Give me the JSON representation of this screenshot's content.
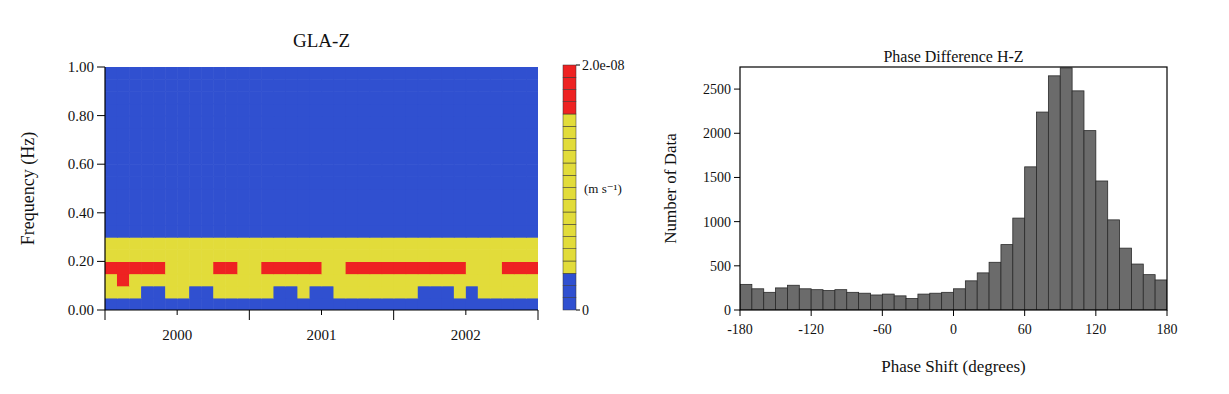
{
  "chart_data": [
    {
      "type": "heatmap",
      "title": "GLA-Z",
      "y_label": "Frequency (Hz)",
      "x_edges": [
        2000,
        2000.083,
        2000.167,
        2000.25,
        2000.333,
        2000.417,
        2000.5,
        2000.583,
        2000.667,
        2000.75,
        2000.833,
        2000.917,
        2001,
        2001.083,
        2001.167,
        2001.25,
        2001.333,
        2001.417,
        2001.5,
        2001.583,
        2001.667,
        2001.75,
        2001.833,
        2001.917,
        2002,
        2002.083,
        2002.167,
        2002.25,
        2002.333,
        2002.417,
        2002.5,
        2002.583,
        2002.667,
        2002.75,
        2002.833,
        2002.917,
        2003
      ],
      "y_edges": [
        0,
        0.05,
        0.1,
        0.15,
        0.2,
        0.25,
        0.3,
        0.35,
        0.4,
        0.45,
        0.5,
        0.55,
        0.6,
        0.65,
        0.7,
        0.75,
        0.8,
        0.85,
        0.9,
        0.95,
        1.0
      ],
      "z": [
        [
          2e-09,
          2e-09,
          2e-09,
          2e-09,
          2e-09,
          2e-09,
          2e-09,
          2e-09,
          2e-09,
          2e-09,
          2e-09,
          2e-09,
          2e-09,
          2e-09,
          2e-09,
          2e-09,
          2e-09,
          2e-09,
          2e-09,
          2e-09,
          2e-09,
          2e-09,
          2e-09,
          2e-09,
          2e-09,
          2e-09,
          2e-09,
          2e-09,
          2e-09,
          2e-09,
          2e-09,
          2e-09,
          2e-09,
          2e-09,
          2e-09,
          2e-09
        ],
        [
          4e-09,
          5e-09,
          4e-09,
          2e-09,
          2e-09,
          3e-09,
          4e-09,
          2e-09,
          2e-09,
          4e-09,
          5e-09,
          4e-09,
          5e-09,
          4e-09,
          2e-09,
          2e-09,
          3e-09,
          2e-09,
          2e-09,
          4e-09,
          5e-09,
          4e-09,
          4e-09,
          5e-09,
          4e-09,
          4e-09,
          2e-09,
          2e-09,
          2e-09,
          3e-09,
          2e-09,
          4e-09,
          5e-09,
          4e-09,
          4e-09,
          5e-09
        ],
        [
          1.5e-08,
          1.6e-08,
          1.5e-08,
          1.3e-08,
          1.2e-08,
          1.1e-08,
          1e-08,
          1.1e-08,
          1.1e-08,
          1.3e-08,
          1.4e-08,
          1.2e-08,
          1.2e-08,
          1.4e-08,
          1.5e-08,
          1.5e-08,
          1.3e-08,
          1.3e-08,
          1.1e-08,
          1e-08,
          1.3e-08,
          1.4e-08,
          1.5e-08,
          1.3e-08,
          1.3e-08,
          1.4e-08,
          1.5e-08,
          1.5e-08,
          1.3e-08,
          1.3e-08,
          1.1e-08,
          1e-08,
          1.2e-08,
          1.4e-08,
          1.5e-08,
          1.4e-08
        ],
        [
          1.8e-08,
          1.9e-08,
          1.8e-08,
          1.7e-08,
          1.7e-08,
          1.5e-08,
          1.4e-08,
          1.5e-08,
          1.4e-08,
          1.7e-08,
          1.6e-08,
          1.4e-08,
          1.5e-08,
          1.7e-08,
          1.8e-08,
          1.8e-08,
          1.7e-08,
          1.7e-08,
          1.5e-08,
          1.4e-08,
          1.7e-08,
          1.7e-08,
          1.8e-08,
          1.6e-08,
          1.6e-08,
          1.7e-08,
          1.8e-08,
          1.8e-08,
          1.7e-08,
          1.7e-08,
          1.5e-08,
          1.4e-08,
          1.5e-08,
          1.7e-08,
          1.8e-08,
          1.7e-08
        ],
        [
          1e-08,
          1e-08,
          1e-08,
          1e-08,
          1e-08,
          1e-08,
          1e-08,
          1e-08,
          1e-08,
          1e-08,
          1e-08,
          1e-08,
          1e-08,
          1e-08,
          1e-08,
          1e-08,
          1e-08,
          1e-08,
          1e-08,
          1e-08,
          1e-08,
          1e-08,
          1e-08,
          1e-08,
          1e-08,
          1e-08,
          1e-08,
          1e-08,
          1e-08,
          1e-08,
          1e-08,
          1e-08,
          1e-08,
          1e-08,
          1e-08,
          1e-08
        ],
        [
          6e-09,
          6e-09,
          6e-09,
          6e-09,
          6e-09,
          6e-09,
          6e-09,
          6e-09,
          6e-09,
          6e-09,
          6e-09,
          6e-09,
          6e-09,
          6e-09,
          6e-09,
          6e-09,
          6e-09,
          6e-09,
          6e-09,
          6e-09,
          6e-09,
          6e-09,
          6e-09,
          6e-09,
          6e-09,
          6e-09,
          6e-09,
          6e-09,
          6e-09,
          6e-09,
          6e-09,
          6e-09,
          6e-09,
          6e-09,
          6e-09,
          6e-09
        ],
        [
          1e-09,
          1e-09,
          1e-09,
          1e-09,
          1e-09,
          1e-09,
          1e-09,
          1e-09,
          1e-09,
          1e-09,
          1e-09,
          1e-09,
          1e-09,
          1e-09,
          1e-09,
          1e-09,
          1e-09,
          1e-09,
          1e-09,
          1e-09,
          1e-09,
          1e-09,
          1e-09,
          1e-09,
          1e-09,
          1e-09,
          1e-09,
          1e-09,
          1e-09,
          1e-09,
          1e-09,
          1e-09,
          1e-09,
          1e-09,
          1e-09,
          1e-09
        ],
        [
          1e-09,
          1e-09,
          1e-09,
          1e-09,
          1e-09,
          1e-09,
          1e-09,
          1e-09,
          1e-09,
          1e-09,
          1e-09,
          1e-09,
          1e-09,
          1e-09,
          1e-09,
          1e-09,
          1e-09,
          1e-09,
          1e-09,
          1e-09,
          1e-09,
          1e-09,
          1e-09,
          1e-09,
          1e-09,
          1e-09,
          1e-09,
          1e-09,
          1e-09,
          1e-09,
          1e-09,
          1e-09,
          1e-09,
          1e-09,
          1e-09,
          1e-09
        ],
        [
          1e-09,
          1e-09,
          1e-09,
          1e-09,
          1e-09,
          1e-09,
          1e-09,
          1e-09,
          1e-09,
          1e-09,
          1e-09,
          1e-09,
          1e-09,
          1e-09,
          1e-09,
          1e-09,
          1e-09,
          1e-09,
          1e-09,
          1e-09,
          1e-09,
          1e-09,
          1e-09,
          1e-09,
          1e-09,
          1e-09,
          1e-09,
          1e-09,
          1e-09,
          1e-09,
          1e-09,
          1e-09,
          1e-09,
          1e-09,
          1e-09,
          1e-09
        ],
        [
          1e-09,
          1e-09,
          1e-09,
          1e-09,
          1e-09,
          1e-09,
          1e-09,
          1e-09,
          1e-09,
          1e-09,
          1e-09,
          1e-09,
          1e-09,
          1e-09,
          1e-09,
          1e-09,
          1e-09,
          1e-09,
          1e-09,
          1e-09,
          1e-09,
          1e-09,
          1e-09,
          1e-09,
          1e-09,
          1e-09,
          1e-09,
          1e-09,
          1e-09,
          1e-09,
          1e-09,
          1e-09,
          1e-09,
          1e-09,
          1e-09,
          1e-09
        ],
        [
          1e-09,
          1e-09,
          1e-09,
          1e-09,
          1e-09,
          1e-09,
          1e-09,
          1e-09,
          1e-09,
          1e-09,
          1e-09,
          1e-09,
          1e-09,
          1e-09,
          1e-09,
          1e-09,
          1e-09,
          1e-09,
          1e-09,
          1e-09,
          1e-09,
          1e-09,
          1e-09,
          1e-09,
          1e-09,
          1e-09,
          1e-09,
          1e-09,
          1e-09,
          1e-09,
          1e-09,
          1e-09,
          1e-09,
          1e-09,
          1e-09,
          1e-09
        ],
        [
          1e-09,
          1e-09,
          1e-09,
          1e-09,
          1e-09,
          1e-09,
          1e-09,
          1e-09,
          1e-09,
          1e-09,
          1e-09,
          1e-09,
          1e-09,
          1e-09,
          1e-09,
          1e-09,
          1e-09,
          1e-09,
          1e-09,
          1e-09,
          1e-09,
          1e-09,
          1e-09,
          1e-09,
          1e-09,
          1e-09,
          1e-09,
          1e-09,
          1e-09,
          1e-09,
          1e-09,
          1e-09,
          1e-09,
          1e-09,
          1e-09,
          1e-09
        ],
        [
          1e-09,
          1e-09,
          1e-09,
          1e-09,
          1e-09,
          1e-09,
          1e-09,
          1e-09,
          1e-09,
          1e-09,
          1e-09,
          1e-09,
          1e-09,
          1e-09,
          1e-09,
          1e-09,
          1e-09,
          1e-09,
          1e-09,
          1e-09,
          1e-09,
          1e-09,
          1e-09,
          1e-09,
          1e-09,
          1e-09,
          1e-09,
          1e-09,
          1e-09,
          1e-09,
          1e-09,
          1e-09,
          1e-09,
          1e-09,
          1e-09,
          1e-09
        ],
        [
          1e-09,
          1e-09,
          1e-09,
          1e-09,
          1e-09,
          1e-09,
          1e-09,
          1e-09,
          1e-09,
          1e-09,
          1e-09,
          1e-09,
          1e-09,
          1e-09,
          1e-09,
          1e-09,
          1e-09,
          1e-09,
          1e-09,
          1e-09,
          1e-09,
          1e-09,
          1e-09,
          1e-09,
          1e-09,
          1e-09,
          1e-09,
          1e-09,
          1e-09,
          1e-09,
          1e-09,
          1e-09,
          1e-09,
          1e-09,
          1e-09,
          1e-09
        ],
        [
          1e-09,
          1e-09,
          1e-09,
          1e-09,
          1e-09,
          1e-09,
          1e-09,
          1e-09,
          1e-09,
          1e-09,
          1e-09,
          1e-09,
          1e-09,
          1e-09,
          1e-09,
          1e-09,
          1e-09,
          1e-09,
          1e-09,
          1e-09,
          1e-09,
          1e-09,
          1e-09,
          1e-09,
          1e-09,
          1e-09,
          1e-09,
          1e-09,
          1e-09,
          1e-09,
          1e-09,
          1e-09,
          1e-09,
          1e-09,
          1e-09,
          1e-09
        ],
        [
          1e-09,
          1e-09,
          1e-09,
          1e-09,
          1e-09,
          1e-09,
          1e-09,
          1e-09,
          1e-09,
          1e-09,
          1e-09,
          1e-09,
          1e-09,
          1e-09,
          1e-09,
          1e-09,
          1e-09,
          1e-09,
          1e-09,
          1e-09,
          1e-09,
          1e-09,
          1e-09,
          1e-09,
          1e-09,
          1e-09,
          1e-09,
          1e-09,
          1e-09,
          1e-09,
          1e-09,
          1e-09,
          1e-09,
          1e-09,
          1e-09,
          1e-09
        ],
        [
          1e-09,
          1e-09,
          1e-09,
          1e-09,
          1e-09,
          1e-09,
          1e-09,
          1e-09,
          1e-09,
          1e-09,
          1e-09,
          1e-09,
          1e-09,
          1e-09,
          1e-09,
          1e-09,
          1e-09,
          1e-09,
          1e-09,
          1e-09,
          1e-09,
          1e-09,
          1e-09,
          1e-09,
          1e-09,
          1e-09,
          1e-09,
          1e-09,
          1e-09,
          1e-09,
          1e-09,
          1e-09,
          1e-09,
          1e-09,
          1e-09,
          1e-09
        ],
        [
          1e-09,
          1e-09,
          1e-09,
          1e-09,
          1e-09,
          1e-09,
          1e-09,
          1e-09,
          1e-09,
          1e-09,
          1e-09,
          1e-09,
          1e-09,
          1e-09,
          1e-09,
          1e-09,
          1e-09,
          1e-09,
          1e-09,
          1e-09,
          1e-09,
          1e-09,
          1e-09,
          1e-09,
          1e-09,
          1e-09,
          1e-09,
          1e-09,
          1e-09,
          1e-09,
          1e-09,
          1e-09,
          1e-09,
          1e-09,
          1e-09,
          1e-09
        ],
        [
          1e-09,
          1e-09,
          1e-09,
          1e-09,
          1e-09,
          1e-09,
          1e-09,
          1e-09,
          1e-09,
          1e-09,
          1e-09,
          1e-09,
          1e-09,
          1e-09,
          1e-09,
          1e-09,
          1e-09,
          1e-09,
          1e-09,
          1e-09,
          1e-09,
          1e-09,
          1e-09,
          1e-09,
          1e-09,
          1e-09,
          1e-09,
          1e-09,
          1e-09,
          1e-09,
          1e-09,
          1e-09,
          1e-09,
          1e-09,
          1e-09,
          1e-09
        ],
        [
          1e-09,
          1e-09,
          1e-09,
          1e-09,
          1e-09,
          1e-09,
          1e-09,
          1e-09,
          1e-09,
          1e-09,
          1e-09,
          1e-09,
          1e-09,
          1e-09,
          1e-09,
          1e-09,
          1e-09,
          1e-09,
          1e-09,
          1e-09,
          1e-09,
          1e-09,
          1e-09,
          1e-09,
          1e-09,
          1e-09,
          1e-09,
          1e-09,
          1e-09,
          1e-09,
          1e-09,
          1e-09,
          1e-09,
          1e-09,
          1e-09,
          1e-09
        ]
      ],
      "xlim": [
        2000,
        2003
      ],
      "xticks": [
        {
          "value": 2000.5,
          "label": "2000"
        },
        {
          "value": 2001.5,
          "label": "2001"
        },
        {
          "value": 2002.5,
          "label": "2002"
        }
      ],
      "year_edges": [
        2000,
        2001,
        2002,
        2003
      ],
      "ylim": [
        0,
        1
      ],
      "yticks": [
        {
          "value": 0,
          "label": "0.00"
        },
        {
          "value": 0.2,
          "label": "0.20"
        },
        {
          "value": 0.4,
          "label": "0.40"
        },
        {
          "value": 0.6,
          "label": "0.60"
        },
        {
          "value": 0.8,
          "label": "0.80"
        },
        {
          "value": 1.0,
          "label": "1.00"
        }
      ],
      "colorbar": {
        "range": [
          0,
          2e-08
        ],
        "ticks": [
          0,
          {
            "value": 2e-08,
            "label": "2.0e-08"
          }
        ],
        "label": "(m s⁻¹)",
        "levels": [
          0,
          1e-09,
          2e-09,
          3e-09,
          4e-09,
          5e-09,
          6e-09,
          7e-09,
          8e-09,
          9e-09,
          1e-08,
          1.1e-08,
          1.2e-08,
          1.3e-08,
          1.4e-08,
          1.5e-08,
          1.6e-08,
          1.7e-08,
          1.8e-08,
          1.9e-08,
          2e-08
        ],
        "boundaries": [
          3e-09,
          1.6e-08
        ],
        "colors": [
          "#3050d0",
          "#e2dc3a",
          "#ee2222"
        ]
      }
    },
    {
      "type": "histogram",
      "title": "Phase Difference H-Z",
      "x_label": "Phase Shift (degrees)",
      "y_label": "Number of Data",
      "bins": [
        -180,
        -170,
        -160,
        -150,
        -140,
        -130,
        -120,
        -110,
        -100,
        -90,
        -80,
        -70,
        -60,
        -50,
        -40,
        -30,
        -20,
        -10,
        0,
        10,
        20,
        30,
        40,
        50,
        60,
        70,
        80,
        90,
        100,
        110,
        120,
        130,
        140,
        150,
        160,
        170,
        180
      ],
      "values": [
        290,
        240,
        200,
        250,
        280,
        240,
        230,
        220,
        230,
        200,
        190,
        170,
        180,
        160,
        130,
        180,
        190,
        200,
        240,
        330,
        420,
        540,
        740,
        1040,
        1620,
        2240,
        2650,
        2740,
        2480,
        2030,
        1460,
        1020,
        700,
        520,
        400,
        340
      ],
      "xlim": [
        -180,
        180
      ],
      "xticks": [
        -180,
        -120,
        -60,
        0,
        60,
        120,
        180
      ],
      "ylim": [
        0,
        2750
      ],
      "yticks": [
        0,
        500,
        1000,
        1500,
        2000,
        2500
      ],
      "color": "#6b6b6b"
    }
  ]
}
